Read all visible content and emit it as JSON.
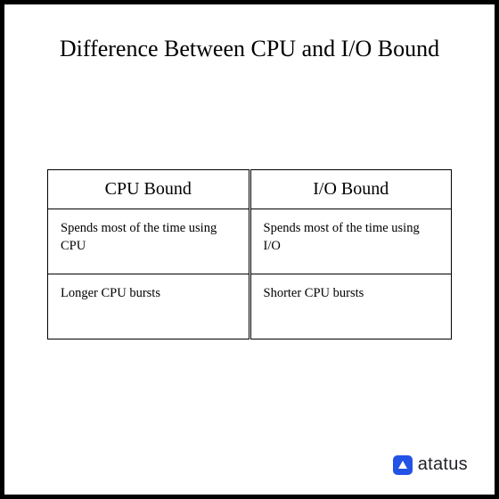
{
  "title": "Difference Between CPU and I/O Bound",
  "table": {
    "type": "table",
    "columns": [
      "CPU Bound",
      "I/O Bound"
    ],
    "rows": [
      [
        "Spends most of the time using CPU",
        "Spends most of the time using I/O"
      ],
      [
        "Longer CPU bursts",
        "Shorter CPU bursts"
      ]
    ],
    "border_color": "#000000",
    "background_color": "#ffffff",
    "header_fontsize": 20,
    "cell_fontsize": 14.5,
    "font_family_header": "Comic Sans MS",
    "font_family_cells": "Comic Sans MS",
    "border_width": 1.5,
    "column_divider_style": "double"
  },
  "brand": {
    "name": "atatus",
    "logo_bg": "#2352e6",
    "logo_fg": "#ffffff",
    "text_color": "#22242b",
    "fontsize": 20
  },
  "frame": {
    "border_color": "#000000",
    "border_width": 5,
    "background_color": "#ffffff"
  },
  "title_style": {
    "fontsize": 26,
    "color": "#000000",
    "font_family": "Georgia"
  }
}
